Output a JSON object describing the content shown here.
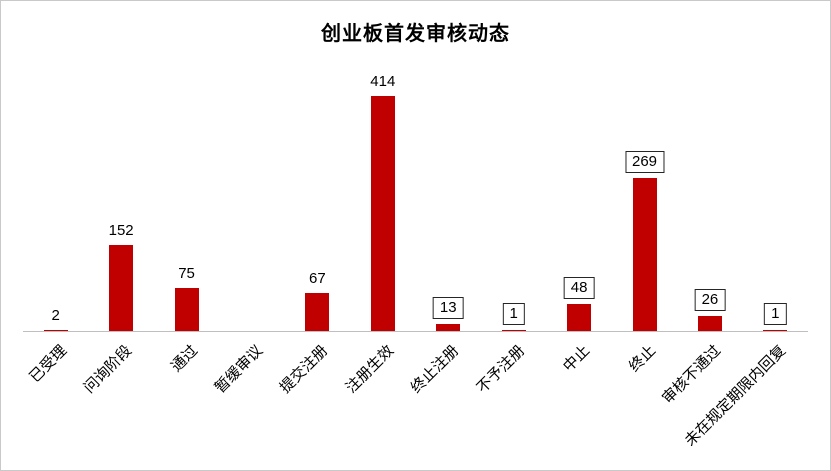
{
  "chart_data": {
    "type": "bar",
    "title": "创业板首发审核动态",
    "categories": [
      "已受理",
      "问询阶段",
      "通过",
      "暂缓审议",
      "提交注册",
      "注册生效",
      "终止注册",
      "不予注册",
      "中止",
      "终止",
      "审核不通过",
      "未在规定期限内回复"
    ],
    "values": [
      2,
      152,
      75,
      0,
      67,
      414,
      13,
      1,
      48,
      269,
      26,
      1
    ],
    "labels_shown": [
      true,
      true,
      true,
      false,
      true,
      true,
      true,
      true,
      true,
      true,
      true,
      true
    ],
    "boxed_labels": [
      false,
      false,
      false,
      false,
      false,
      false,
      true,
      true,
      true,
      true,
      true,
      true
    ],
    "bar_color": "#c00000",
    "axis_color": "#bfbfbf",
    "ylim": [
      0,
      414
    ],
    "grid": false,
    "legend": false,
    "xlabel": "",
    "ylabel": ""
  }
}
